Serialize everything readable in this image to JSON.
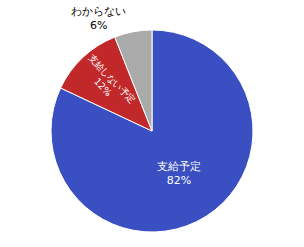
{
  "chart_data": {
    "type": "pie",
    "categories": [
      "支給予定",
      "支給しない予定",
      "わからない"
    ],
    "values": [
      82,
      12,
      6
    ],
    "value_labels": [
      "82%",
      "12%",
      "6%"
    ],
    "colors": [
      "#3A4FC1",
      "#C0282A",
      "#AAAAAA"
    ],
    "data_labels": true
  }
}
